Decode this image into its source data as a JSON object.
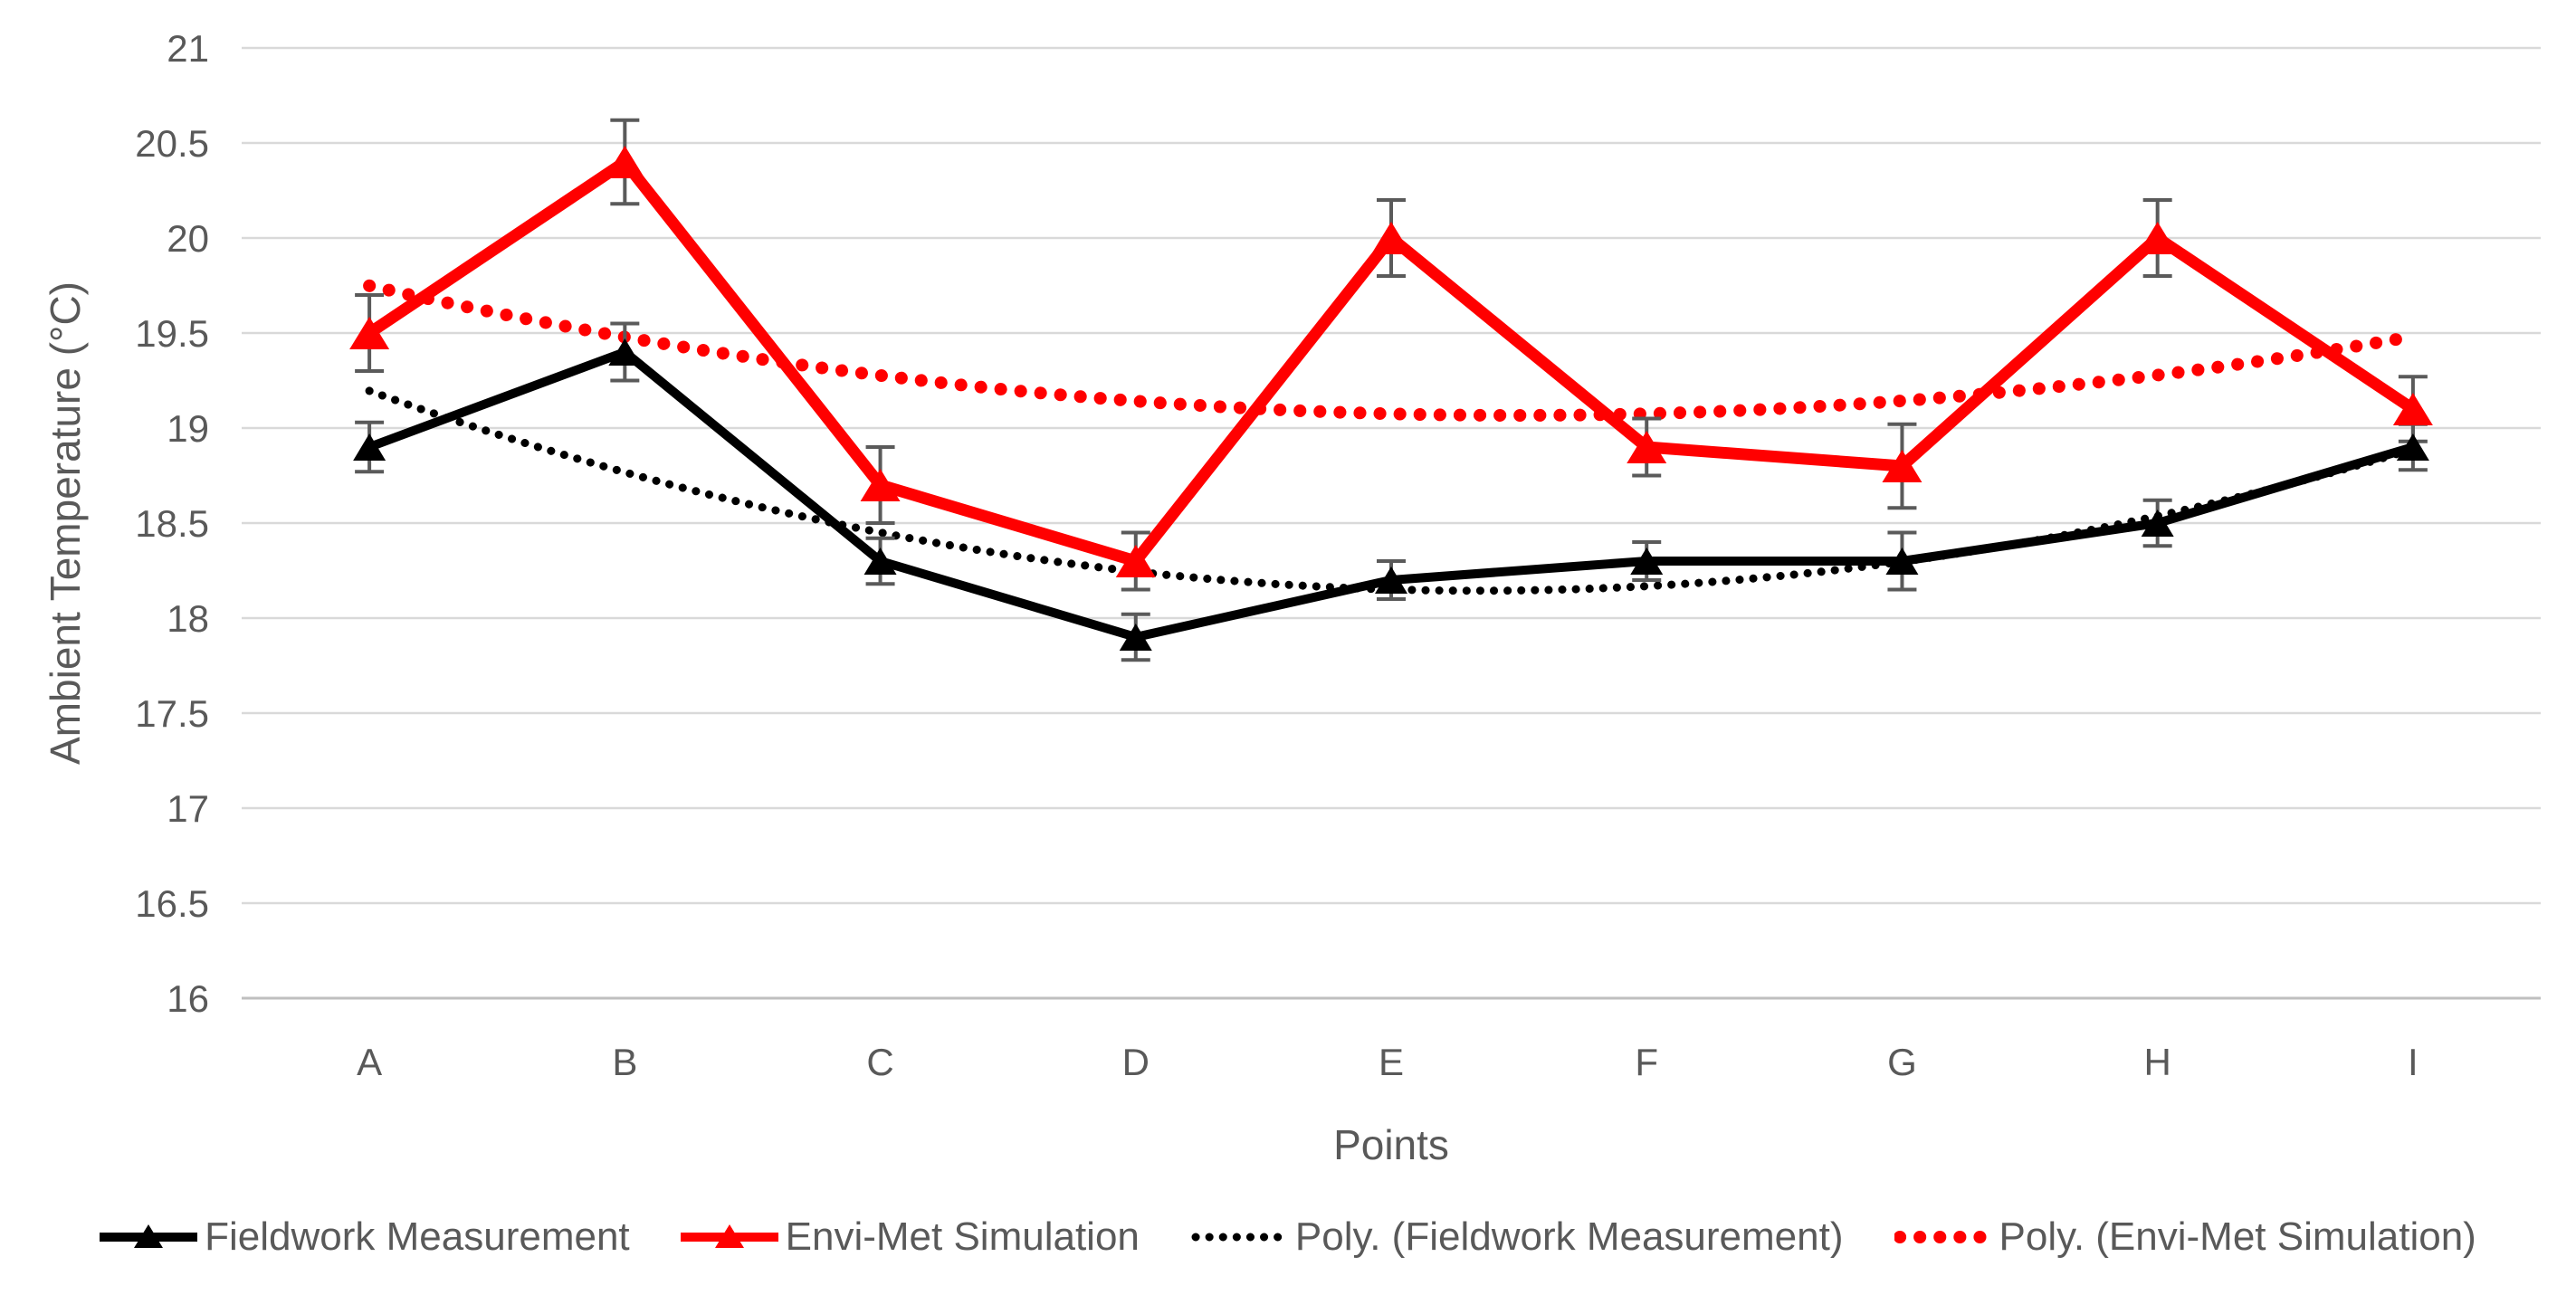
{
  "chart_data": {
    "type": "line",
    "title": "",
    "xlabel": "Points",
    "ylabel": "Ambient Temperature (°C)",
    "ylim": [
      16,
      21
    ],
    "ytick_step": 0.5,
    "grid": true,
    "legend_position": "bottom",
    "categories": [
      "A",
      "B",
      "C",
      "D",
      "E",
      "F",
      "G",
      "H",
      "I"
    ],
    "series": [
      {
        "name": "Fieldwork Measurement",
        "color": "#000000",
        "marker": "triangle",
        "values": [
          18.9,
          19.4,
          18.3,
          17.9,
          18.2,
          18.3,
          18.3,
          18.5,
          18.9
        ],
        "errors": [
          0.13,
          0.15,
          0.12,
          0.12,
          0.1,
          0.1,
          0.15,
          0.12,
          0.12
        ]
      },
      {
        "name": "Envi-Met Simulation",
        "color": "#FF0000",
        "marker": "triangle",
        "values": [
          19.5,
          20.4,
          18.7,
          18.3,
          20.0,
          18.9,
          18.8,
          20.0,
          19.1
        ],
        "errors": [
          0.2,
          0.22,
          0.2,
          0.15,
          0.2,
          0.15,
          0.22,
          0.2,
          0.17
        ]
      }
    ],
    "trendlines": [
      {
        "name": "Poly. (Fieldwork Measurement)",
        "source": 0,
        "order": 2,
        "color": "#000000",
        "style": "dotted"
      },
      {
        "name": "Poly. (Envi-Met Simulation)",
        "source": 1,
        "order": 2,
        "color": "#FF0000",
        "style": "dotted"
      }
    ],
    "colors": {
      "axis_text": "#595959",
      "gridline": "#D9D9D9",
      "axis_line": "#BFBFBF",
      "error_bar": "#5A5A5A",
      "background": "#FFFFFF"
    }
  }
}
